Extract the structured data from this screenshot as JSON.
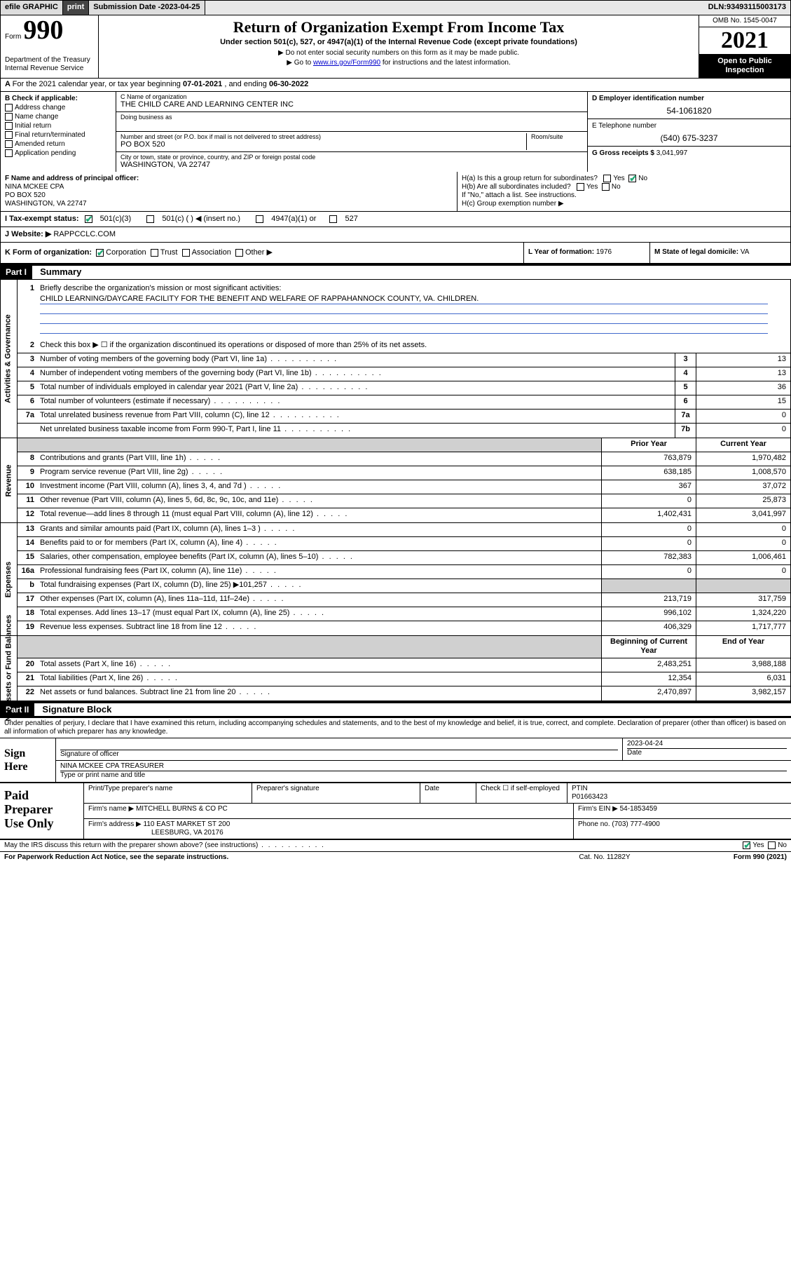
{
  "topbar": {
    "efile": "efile GRAPHIC",
    "print": "print",
    "subdate_label": "Submission Date - ",
    "subdate": "2023-04-25",
    "dln_label": "DLN: ",
    "dln": "93493115003173"
  },
  "header": {
    "form_label": "Form",
    "form_num": "990",
    "dept": "Department of the Treasury\nInternal Revenue Service",
    "title": "Return of Organization Exempt From Income Tax",
    "subtitle": "Under section 501(c), 527, or 4947(a)(1) of the Internal Revenue Code (except private foundations)",
    "note1": "▶ Do not enter social security numbers on this form as it may be made public.",
    "note2_pre": "▶ Go to ",
    "note2_link": "www.irs.gov/Form990",
    "note2_post": " for instructions and the latest information.",
    "omb": "OMB No. 1545-0047",
    "year": "2021",
    "open_public": "Open to Public\nInspection"
  },
  "rowA": {
    "label": "A",
    "text": " For the 2021 calendar year, or tax year beginning ",
    "begin": "07-01-2021",
    "mid": " , and ending ",
    "end": "06-30-2022"
  },
  "colB": {
    "label": "B Check if applicable:",
    "items": [
      "Address change",
      "Name change",
      "Initial return",
      "Final return/terminated",
      "Amended return",
      "Application pending"
    ]
  },
  "colC": {
    "name_lbl": "C Name of organization",
    "name": "THE CHILD CARE AND LEARNING CENTER INC",
    "dba_lbl": "Doing business as",
    "dba": "",
    "addr_lbl": "Number and street (or P.O. box if mail is not delivered to street address)",
    "addr": "PO BOX 520",
    "room_lbl": "Room/suite",
    "room": "",
    "city_lbl": "City or town, state or province, country, and ZIP or foreign postal code",
    "city": "WASHINGTON, VA  22747"
  },
  "colDE": {
    "d_lbl": "D Employer identification number",
    "d_val": "54-1061820",
    "e_lbl": "E Telephone number",
    "e_val": "(540) 675-3237",
    "g_lbl": "G Gross receipts $ ",
    "g_val": "3,041,997"
  },
  "rowF": {
    "lbl": "F Name and address of principal officer:",
    "name": "NINA MCKEE CPA",
    "addr1": "PO BOX 520",
    "addr2": "WASHINGTON, VA  22747"
  },
  "rowH": {
    "ha": "H(a)  Is this a group return for subordinates?",
    "ha_yes": "Yes",
    "ha_no": "No",
    "hb": "H(b)  Are all subordinates included?",
    "hb_yes": "Yes",
    "hb_no": "No",
    "hb_note": "If \"No,\" attach a list. See instructions.",
    "hc": "H(c)  Group exemption number ▶"
  },
  "rowI": {
    "lbl": "I      Tax-exempt status:",
    "opt1": "501(c)(3)",
    "opt2": "501(c) (  ) ◀ (insert no.)",
    "opt3": "4947(a)(1) or",
    "opt4": "527"
  },
  "rowJ": {
    "lbl": "J     Website: ▶ ",
    "val": "RAPPCCLC.COM"
  },
  "rowK": {
    "lbl": "K Form of organization:",
    "o1": "Corporation",
    "o2": "Trust",
    "o3": "Association",
    "o4": "Other ▶"
  },
  "rowL": {
    "lbl": "L Year of formation: ",
    "val": "1976"
  },
  "rowM": {
    "lbl": "M State of legal domicile: ",
    "val": "VA"
  },
  "partI": {
    "hdr": "Part I",
    "title": "Summary"
  },
  "vtabs": {
    "gov": "Activities & Governance",
    "rev": "Revenue",
    "exp": "Expenses",
    "net": "Net Assets or\nFund Balances"
  },
  "line1": {
    "n": "1",
    "t": "Briefly describe the organization's mission or most significant activities:",
    "mission": "CHILD LEARNING/DAYCARE FACILITY FOR THE BENEFIT AND WELFARE OF RAPPAHANNOCK COUNTY, VA. CHILDREN."
  },
  "line2": {
    "n": "2",
    "t": "Check this box ▶ ☐ if the organization discontinued its operations or disposed of more than 25% of its net assets."
  },
  "govlines": [
    {
      "n": "3",
      "t": "Number of voting members of the governing body (Part VI, line 1a)",
      "r": "3",
      "v": "13"
    },
    {
      "n": "4",
      "t": "Number of independent voting members of the governing body (Part VI, line 1b)",
      "r": "4",
      "v": "13"
    },
    {
      "n": "5",
      "t": "Total number of individuals employed in calendar year 2021 (Part V, line 2a)",
      "r": "5",
      "v": "36"
    },
    {
      "n": "6",
      "t": "Total number of volunteers (estimate if necessary)",
      "r": "6",
      "v": "15"
    },
    {
      "n": "7a",
      "t": "Total unrelated business revenue from Part VIII, column (C), line 12",
      "r": "7a",
      "v": "0"
    },
    {
      "n": "",
      "t": "Net unrelated business taxable income from Form 990-T, Part I, line 11",
      "r": "7b",
      "v": "0"
    }
  ],
  "pychdr": {
    "prior": "Prior Year",
    "curr": "Current Year"
  },
  "revlines": [
    {
      "n": "8",
      "t": "Contributions and grants (Part VIII, line 1h)",
      "p": "763,879",
      "c": "1,970,482"
    },
    {
      "n": "9",
      "t": "Program service revenue (Part VIII, line 2g)",
      "p": "638,185",
      "c": "1,008,570"
    },
    {
      "n": "10",
      "t": "Investment income (Part VIII, column (A), lines 3, 4, and 7d )",
      "p": "367",
      "c": "37,072"
    },
    {
      "n": "11",
      "t": "Other revenue (Part VIII, column (A), lines 5, 6d, 8c, 9c, 10c, and 11e)",
      "p": "0",
      "c": "25,873"
    },
    {
      "n": "12",
      "t": "Total revenue—add lines 8 through 11 (must equal Part VIII, column (A), line 12)",
      "p": "1,402,431",
      "c": "3,041,997"
    }
  ],
  "explines": [
    {
      "n": "13",
      "t": "Grants and similar amounts paid (Part IX, column (A), lines 1–3 )",
      "p": "0",
      "c": "0"
    },
    {
      "n": "14",
      "t": "Benefits paid to or for members (Part IX, column (A), line 4)",
      "p": "0",
      "c": "0"
    },
    {
      "n": "15",
      "t": "Salaries, other compensation, employee benefits (Part IX, column (A), lines 5–10)",
      "p": "782,383",
      "c": "1,006,461"
    },
    {
      "n": "16a",
      "t": "Professional fundraising fees (Part IX, column (A), line 11e)",
      "p": "0",
      "c": "0"
    },
    {
      "n": "b",
      "t": "Total fundraising expenses (Part IX, column (D), line 25) ▶101,257",
      "p": "",
      "c": "",
      "shade": true
    },
    {
      "n": "17",
      "t": "Other expenses (Part IX, column (A), lines 11a–11d, 11f–24e)",
      "p": "213,719",
      "c": "317,759"
    },
    {
      "n": "18",
      "t": "Total expenses. Add lines 13–17 (must equal Part IX, column (A), line 25)",
      "p": "996,102",
      "c": "1,324,220"
    },
    {
      "n": "19",
      "t": "Revenue less expenses. Subtract line 18 from line 12",
      "p": "406,329",
      "c": "1,717,777"
    }
  ],
  "nethdr": {
    "prior": "Beginning of Current Year",
    "curr": "End of Year"
  },
  "netlines": [
    {
      "n": "20",
      "t": "Total assets (Part X, line 16)",
      "p": "2,483,251",
      "c": "3,988,188"
    },
    {
      "n": "21",
      "t": "Total liabilities (Part X, line 26)",
      "p": "12,354",
      "c": "6,031"
    },
    {
      "n": "22",
      "t": "Net assets or fund balances. Subtract line 21 from line 20",
      "p": "2,470,897",
      "c": "3,982,157"
    }
  ],
  "partII": {
    "hdr": "Part II",
    "title": "Signature Block"
  },
  "sigdecl": "Under penalties of perjury, I declare that I have examined this return, including accompanying schedules and statements, and to the best of my knowledge and belief, it is true, correct, and complete. Declaration of preparer (other than officer) is based on all information of which preparer has any knowledge.",
  "sign": {
    "here": "Sign\nHere",
    "sig_lbl": "Signature of officer",
    "date_lbl": "Date",
    "date": "2023-04-24",
    "name": "NINA MCKEE CPA  TREASURER",
    "name_lbl": "Type or print name and title"
  },
  "paid": {
    "title": "Paid\nPreparer\nUse Only",
    "h1": "Print/Type preparer's name",
    "h2": "Preparer's signature",
    "h3": "Date",
    "h4": "Check ☐ if self-employed",
    "h5": "PTIN",
    "ptin": "P01663423",
    "firm_lbl": "Firm's name    ▶ ",
    "firm": "MITCHELL BURNS & CO PC",
    "ein_lbl": "Firm's EIN ▶ ",
    "ein": "54-1853459",
    "addr_lbl": "Firm's address ▶ ",
    "addr1": "110 EAST MARKET ST 200",
    "addr2": "LEESBURG, VA  20176",
    "ph_lbl": "Phone no. ",
    "ph": "(703) 777-4900"
  },
  "footer": {
    "may": "May the IRS discuss this return with the preparer shown above? (see instructions)",
    "yes": "Yes",
    "no": "No",
    "pra": "For Paperwork Reduction Act Notice, see the separate instructions.",
    "cat": "Cat. No. 11282Y",
    "form": "Form 990 (2021)"
  },
  "colors": {
    "link": "#0000cc",
    "check": "#22aa77",
    "shade": "#d0d0d0",
    "mission_line": "#4169cc"
  }
}
